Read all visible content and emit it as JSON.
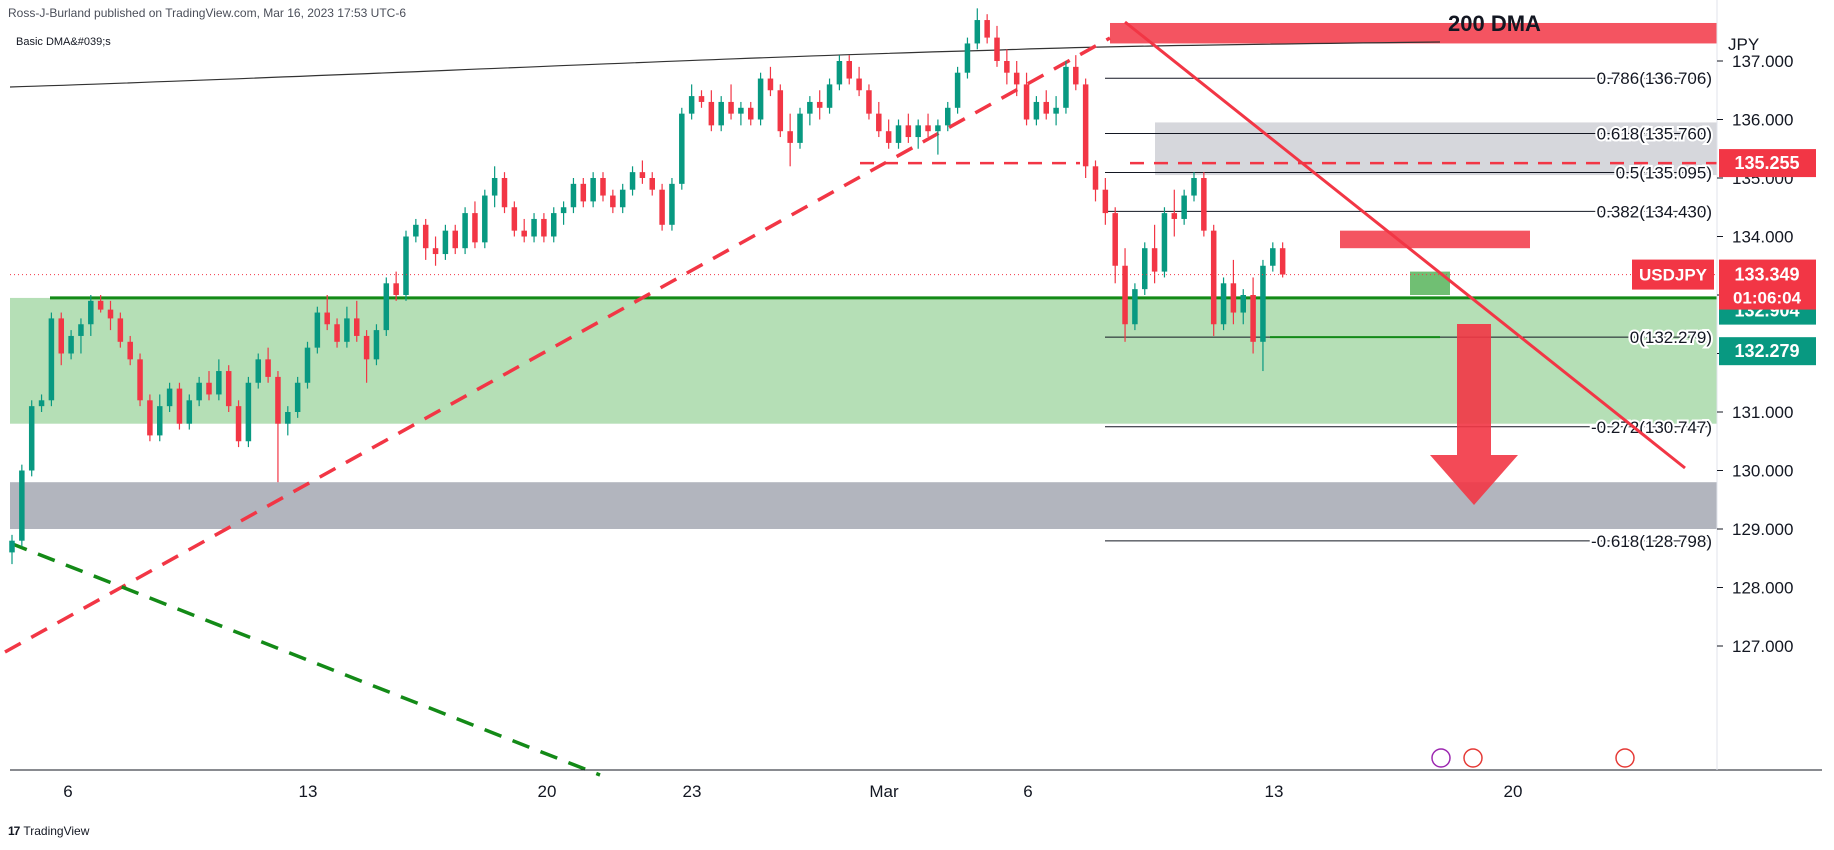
{
  "header": {
    "publisher_line": "Ross-J-Burland published on TradingView.com, Mar 16, 2023 17:53 UTC-6",
    "indicator_label": "Basic DMA&#039;s"
  },
  "footer": {
    "brand": "TradingView",
    "logo_glyph": "17"
  },
  "chart_data": {
    "type": "candlestick",
    "symbol": "USDJPY",
    "currency_label": "JPY",
    "y_axis": {
      "ticks": [
        137.0,
        136.0,
        135.0,
        134.0,
        133.0,
        132.0,
        131.0,
        130.0,
        129.0,
        128.0,
        127.0
      ],
      "tick_labels": [
        "137.000",
        "136.000",
        "135.000",
        "134.000",
        "133.000",
        "132.000",
        "131.000",
        "130.000",
        "129.000",
        "128.000",
        "127.000"
      ],
      "range": [
        126.75,
        138.45
      ]
    },
    "x_axis": {
      "tick_labels": [
        "6",
        "13",
        "20",
        "23",
        "Mar",
        "6",
        "13",
        "20"
      ]
    },
    "last_price": {
      "label": "USDJPY",
      "value": "133.349",
      "countdown": "01:06:04",
      "color": "#f23645"
    },
    "price_badges": [
      {
        "value": "135.255",
        "color": "#f23645",
        "price": 135.255
      },
      {
        "value": "132.904",
        "color": "#089981",
        "price": 132.904
      },
      {
        "value": "132.279",
        "color": "#089981",
        "price": 132.279
      }
    ],
    "fib_levels": [
      {
        "label": "0.786(136.706)",
        "price": 136.706
      },
      {
        "label": "0.618(135.760)",
        "price": 135.76
      },
      {
        "label": "0.5(135.095)",
        "price": 135.095
      },
      {
        "label": "0.382(134.430)",
        "price": 134.43
      },
      {
        "label": "0(132.279)",
        "price": 132.279
      },
      {
        "label": "-0.272(130.747)",
        "price": 130.747
      },
      {
        "label": "-0.618(128.798)",
        "price": 128.798
      }
    ],
    "annotations": {
      "dma_label": "200 DMA"
    },
    "colors": {
      "up": "#089981",
      "down": "#f23645",
      "support_zone": "#b5dfb6",
      "grey_zone": "#b2b5be",
      "trend_red": "#f23645",
      "trend_green": "#138a17"
    },
    "candles": [
      [
        128.6,
        128.9,
        128.4,
        128.8
      ],
      [
        128.8,
        130.1,
        128.7,
        130.0
      ],
      [
        130.0,
        131.2,
        129.9,
        131.1
      ],
      [
        131.1,
        131.3,
        131.0,
        131.2
      ],
      [
        131.2,
        132.7,
        131.1,
        132.6
      ],
      [
        132.6,
        132.7,
        131.8,
        132.0
      ],
      [
        132.0,
        132.4,
        131.9,
        132.3
      ],
      [
        132.3,
        132.6,
        132.0,
        132.5
      ],
      [
        132.5,
        133.0,
        132.3,
        132.9
      ],
      [
        132.9,
        133.0,
        132.7,
        132.75
      ],
      [
        132.75,
        132.9,
        132.4,
        132.6
      ],
      [
        132.6,
        132.7,
        132.1,
        132.2
      ],
      [
        132.2,
        132.3,
        131.8,
        131.9
      ],
      [
        131.9,
        132.0,
        131.1,
        131.2
      ],
      [
        131.2,
        131.3,
        130.5,
        130.6
      ],
      [
        130.6,
        131.3,
        130.5,
        131.1
      ],
      [
        131.1,
        131.5,
        131.0,
        131.4
      ],
      [
        131.4,
        131.5,
        130.7,
        130.8
      ],
      [
        130.8,
        131.3,
        130.7,
        131.2
      ],
      [
        131.2,
        131.6,
        131.1,
        131.5
      ],
      [
        131.5,
        131.7,
        131.2,
        131.3
      ],
      [
        131.3,
        131.9,
        131.2,
        131.7
      ],
      [
        131.7,
        131.8,
        131.0,
        131.1
      ],
      [
        131.1,
        131.2,
        130.4,
        130.5
      ],
      [
        130.5,
        131.6,
        130.4,
        131.5
      ],
      [
        131.5,
        132.0,
        131.4,
        131.9
      ],
      [
        131.9,
        132.1,
        131.5,
        131.6
      ],
      [
        131.6,
        131.7,
        129.8,
        130.8
      ],
      [
        130.8,
        131.1,
        130.6,
        131.0
      ],
      [
        131.0,
        131.6,
        130.9,
        131.5
      ],
      [
        131.5,
        132.2,
        131.4,
        132.1
      ],
      [
        132.1,
        132.8,
        132.0,
        132.7
      ],
      [
        132.7,
        133.0,
        132.4,
        132.5
      ],
      [
        132.5,
        132.6,
        132.1,
        132.2
      ],
      [
        132.2,
        132.8,
        132.1,
        132.6
      ],
      [
        132.6,
        132.9,
        132.2,
        132.3
      ],
      [
        132.3,
        132.4,
        131.5,
        131.9
      ],
      [
        131.9,
        132.5,
        131.8,
        132.4
      ],
      [
        132.4,
        133.3,
        132.3,
        133.2
      ],
      [
        133.2,
        133.4,
        132.9,
        133.0
      ],
      [
        133.0,
        134.1,
        132.9,
        134.0
      ],
      [
        134.0,
        134.3,
        133.9,
        134.2
      ],
      [
        134.2,
        134.3,
        133.6,
        133.8
      ],
      [
        133.8,
        134.0,
        133.5,
        133.7
      ],
      [
        133.7,
        134.2,
        133.6,
        134.1
      ],
      [
        134.1,
        134.2,
        133.7,
        133.8
      ],
      [
        133.8,
        134.5,
        133.7,
        134.4
      ],
      [
        134.4,
        134.6,
        133.8,
        133.9
      ],
      [
        133.9,
        134.8,
        133.8,
        134.7
      ],
      [
        134.7,
        135.2,
        134.5,
        135.0
      ],
      [
        135.0,
        135.1,
        134.4,
        134.5
      ],
      [
        134.5,
        134.6,
        134.0,
        134.1
      ],
      [
        134.1,
        134.3,
        133.9,
        134.0
      ],
      [
        134.0,
        134.4,
        133.9,
        134.3
      ],
      [
        134.3,
        134.4,
        133.9,
        134.0
      ],
      [
        134.0,
        134.5,
        133.9,
        134.4
      ],
      [
        134.4,
        134.6,
        134.2,
        134.5
      ],
      [
        134.5,
        135.0,
        134.4,
        134.9
      ],
      [
        134.9,
        135.0,
        134.5,
        134.6
      ],
      [
        134.6,
        135.1,
        134.5,
        135.0
      ],
      [
        135.0,
        135.1,
        134.6,
        134.7
      ],
      [
        134.7,
        134.8,
        134.4,
        134.5
      ],
      [
        134.5,
        134.9,
        134.4,
        134.8
      ],
      [
        134.8,
        135.2,
        134.7,
        135.1
      ],
      [
        135.1,
        135.3,
        134.9,
        135.0
      ],
      [
        135.0,
        135.1,
        134.7,
        134.8
      ],
      [
        134.8,
        134.9,
        134.1,
        134.2
      ],
      [
        134.2,
        135.0,
        134.1,
        134.9
      ],
      [
        134.9,
        136.2,
        134.8,
        136.1
      ],
      [
        136.1,
        136.6,
        136.0,
        136.4
      ],
      [
        136.4,
        136.5,
        136.2,
        136.3
      ],
      [
        136.3,
        136.5,
        135.8,
        135.9
      ],
      [
        135.9,
        136.4,
        135.8,
        136.3
      ],
      [
        136.3,
        136.6,
        136.0,
        136.1
      ],
      [
        136.1,
        136.3,
        135.9,
        136.2
      ],
      [
        136.2,
        136.3,
        135.9,
        136.0
      ],
      [
        136.0,
        136.8,
        135.9,
        136.7
      ],
      [
        136.7,
        136.9,
        136.4,
        136.5
      ],
      [
        136.5,
        136.6,
        135.7,
        135.8
      ],
      [
        135.8,
        136.1,
        135.2,
        135.6
      ],
      [
        135.6,
        136.2,
        135.5,
        136.1
      ],
      [
        136.1,
        136.4,
        135.9,
        136.3
      ],
      [
        136.3,
        136.5,
        136.0,
        136.2
      ],
      [
        136.2,
        136.7,
        136.1,
        136.6
      ],
      [
        136.6,
        137.1,
        136.5,
        137.0
      ],
      [
        137.0,
        137.1,
        136.6,
        136.7
      ],
      [
        136.7,
        136.9,
        136.4,
        136.5
      ],
      [
        136.5,
        136.6,
        136.0,
        136.1
      ],
      [
        136.1,
        136.3,
        135.7,
        135.8
      ],
      [
        135.8,
        136.0,
        135.5,
        135.6
      ],
      [
        135.6,
        136.0,
        135.5,
        135.9
      ],
      [
        135.9,
        136.1,
        135.6,
        135.7
      ],
      [
        135.7,
        136.0,
        135.5,
        135.9
      ],
      [
        135.9,
        136.1,
        135.7,
        135.8
      ],
      [
        135.8,
        136.0,
        135.4,
        135.9
      ],
      [
        135.9,
        136.3,
        135.8,
        136.2
      ],
      [
        136.2,
        136.9,
        136.1,
        136.8
      ],
      [
        136.8,
        137.4,
        136.7,
        137.3
      ],
      [
        137.3,
        137.9,
        137.2,
        137.7
      ],
      [
        137.7,
        137.8,
        137.3,
        137.4
      ],
      [
        137.4,
        137.6,
        136.9,
        137.0
      ],
      [
        137.0,
        137.2,
        136.6,
        136.8
      ],
      [
        136.8,
        137.0,
        136.4,
        136.6
      ],
      [
        136.6,
        136.8,
        135.9,
        136.0
      ],
      [
        136.0,
        136.4,
        135.9,
        136.3
      ],
      [
        136.3,
        136.5,
        136.0,
        136.1
      ],
      [
        136.1,
        136.4,
        135.9,
        136.2
      ],
      [
        136.2,
        137.0,
        136.1,
        136.9
      ],
      [
        136.9,
        137.1,
        136.5,
        136.6
      ],
      [
        136.6,
        136.7,
        135.0,
        135.2
      ],
      [
        135.2,
        135.3,
        134.6,
        134.8
      ],
      [
        134.8,
        135.0,
        134.2,
        134.4
      ],
      [
        134.4,
        134.5,
        133.2,
        133.5
      ],
      [
        133.5,
        133.8,
        132.2,
        132.5
      ],
      [
        132.5,
        133.2,
        132.4,
        133.1
      ],
      [
        133.1,
        133.9,
        133.0,
        133.8
      ],
      [
        133.8,
        134.2,
        133.2,
        133.4
      ],
      [
        133.4,
        134.5,
        133.3,
        134.4
      ],
      [
        134.4,
        134.8,
        134.0,
        134.3
      ],
      [
        134.3,
        134.8,
        134.2,
        134.7
      ],
      [
        134.7,
        135.1,
        134.6,
        135.0
      ],
      [
        135.0,
        135.1,
        134.0,
        134.1
      ],
      [
        134.1,
        134.2,
        132.3,
        132.5
      ],
      [
        132.5,
        133.3,
        132.4,
        133.2
      ],
      [
        133.2,
        133.6,
        132.5,
        132.7
      ],
      [
        132.7,
        133.1,
        132.5,
        133.0
      ],
      [
        133.0,
        133.3,
        132.0,
        132.2
      ],
      [
        132.2,
        133.6,
        131.7,
        133.5
      ],
      [
        133.5,
        133.9,
        133.4,
        133.8
      ],
      [
        133.8,
        133.9,
        133.3,
        133.35
      ]
    ]
  }
}
